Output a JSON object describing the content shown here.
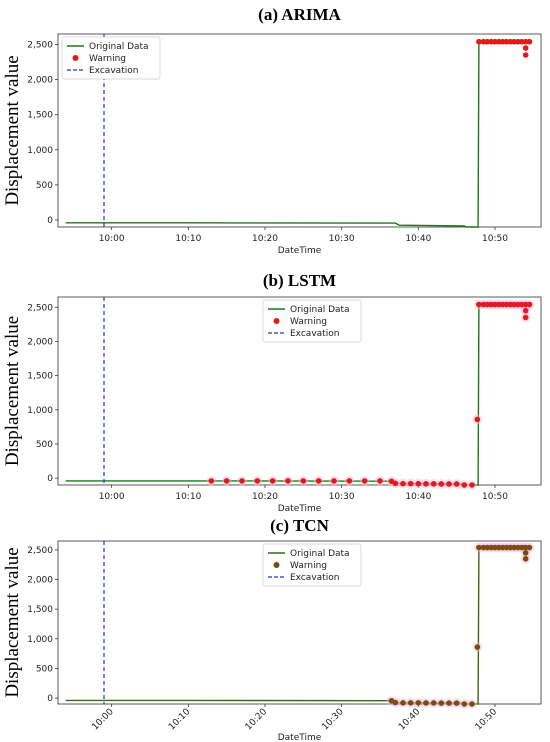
{
  "chart_data": [
    {
      "type": "line",
      "title": "(a) ARIMA",
      "xlabel": "DateTime",
      "ylabel": "Displacement  value",
      "xlim": [
        "09:53",
        "10:56"
      ],
      "ylim": [
        -100,
        2650
      ],
      "x_ticks": [
        "10:00",
        "10:10",
        "10:20",
        "10:30",
        "10:40",
        "10:50"
      ],
      "y_ticks": [
        "0",
        "500",
        "1,000",
        "1,500",
        "2,000",
        "2,500"
      ],
      "x_tick_rotation": 0,
      "legend_position": "top-left",
      "series": [
        {
          "name": "Original Data",
          "style": "line",
          "color": "#1a7a1a",
          "x": [
            "09:54",
            "10:10",
            "10:37",
            "10:37.5",
            "10:46",
            "10:46.2",
            "10:47.8",
            "10:47.9",
            "10:54.5"
          ],
          "y": [
            -40,
            -40,
            -45,
            -75,
            -85,
            -100,
            -100,
            2540,
            2540
          ]
        },
        {
          "name": "Warning",
          "style": "scatter",
          "color": "#e11a1a",
          "x": [
            "10:47.9",
            "10:48.5",
            "10:49",
            "10:49.5",
            "10:50",
            "10:50.5",
            "10:51",
            "10:51.5",
            "10:52",
            "10:52.5",
            "10:53",
            "10:53.5",
            "10:54",
            "10:54",
            "10:54",
            "10:54.5"
          ],
          "y": [
            2540,
            2540,
            2540,
            2540,
            2540,
            2540,
            2540,
            2540,
            2540,
            2540,
            2540,
            2540,
            2540,
            2450,
            2350,
            2540
          ]
        },
        {
          "name": "Excavation",
          "style": "vline",
          "color": "#2233cc",
          "x": [
            "09:59"
          ]
        }
      ]
    },
    {
      "type": "line",
      "title": "(b) LSTM",
      "xlabel": "DateTime",
      "ylabel": "Displacement  value",
      "xlim": [
        "09:53",
        "10:56"
      ],
      "ylim": [
        -100,
        2650
      ],
      "x_ticks": [
        "10:00",
        "10:10",
        "10:20",
        "10:30",
        "10:40",
        "10:50"
      ],
      "y_ticks": [
        "0",
        "500",
        "1,000",
        "1,500",
        "2,000",
        "2,500"
      ],
      "x_tick_rotation": 0,
      "legend_position": "top-center",
      "series": [
        {
          "name": "Original Data",
          "style": "line",
          "color": "#1a7a1a",
          "x": [
            "09:54",
            "10:13",
            "10:36.5",
            "10:37",
            "10:46",
            "10:46.2",
            "10:47.8",
            "10:47.9",
            "10:54.5"
          ],
          "y": [
            -40,
            -40,
            -45,
            -75,
            -85,
            -100,
            -100,
            2540,
            2540
          ]
        },
        {
          "name": "Warning",
          "style": "scatter",
          "color": "#e11a1a",
          "x": [
            "10:13",
            "10:15",
            "10:17",
            "10:19",
            "10:21",
            "10:23",
            "10:25",
            "10:27",
            "10:29",
            "10:31",
            "10:33",
            "10:35",
            "10:36.5",
            "10:37",
            "10:38",
            "10:39",
            "10:40",
            "10:41",
            "10:42",
            "10:43",
            "10:44",
            "10:45",
            "10:46",
            "10:47",
            "10:47.7",
            "10:47.9",
            "10:48.5",
            "10:49",
            "10:49.5",
            "10:50",
            "10:50.5",
            "10:51",
            "10:51.5",
            "10:52",
            "10:52.5",
            "10:53",
            "10:53.5",
            "10:54",
            "10:54",
            "10:54",
            "10:54.5"
          ],
          "y": [
            -40,
            -40,
            -40,
            -40,
            -40,
            -40,
            -40,
            -40,
            -40,
            -40,
            -40,
            -40,
            -45,
            -75,
            -80,
            -80,
            -80,
            -82,
            -82,
            -85,
            -85,
            -85,
            -100,
            -100,
            860,
            2540,
            2540,
            2540,
            2540,
            2540,
            2540,
            2540,
            2540,
            2540,
            2540,
            2540,
            2540,
            2540,
            2450,
            2350,
            2540
          ]
        },
        {
          "name": "Excavation",
          "style": "vline",
          "color": "#2233cc",
          "x": [
            "09:59"
          ]
        }
      ]
    },
    {
      "type": "line",
      "title": "(c) TCN",
      "xlabel": "DateTime",
      "ylabel": "Displacement  value",
      "xlim": [
        "09:53",
        "10:56"
      ],
      "ylim": [
        -100,
        2650
      ],
      "x_ticks": [
        "10:00",
        "10:10",
        "10:20",
        "10:30",
        "10:40",
        "10:50"
      ],
      "y_ticks": [
        "0",
        "500",
        "1,000",
        "1,500",
        "2,000",
        "2,500"
      ],
      "x_tick_rotation": 45,
      "legend_position": "top-center",
      "series": [
        {
          "name": "Original Data",
          "style": "line",
          "color": "#3a6b12",
          "x": [
            "09:54",
            "10:10",
            "10:36.5",
            "10:37",
            "10:46",
            "10:46.2",
            "10:47.8",
            "10:47.9",
            "10:54.5"
          ],
          "y": [
            -40,
            -40,
            -45,
            -75,
            -85,
            -100,
            -100,
            2540,
            2540
          ]
        },
        {
          "name": "Warning",
          "style": "scatter",
          "color": "#7a4d0e",
          "x": [
            "10:36.5",
            "10:37",
            "10:38",
            "10:39",
            "10:40",
            "10:41",
            "10:42",
            "10:43",
            "10:44",
            "10:45",
            "10:46",
            "10:47",
            "10:47.7",
            "10:47.9",
            "10:48.5",
            "10:49",
            "10:49.5",
            "10:50",
            "10:50.5",
            "10:51",
            "10:51.5",
            "10:52",
            "10:52.5",
            "10:53",
            "10:53.5",
            "10:54",
            "10:54",
            "10:54",
            "10:54.5"
          ],
          "y": [
            -45,
            -75,
            -80,
            -80,
            -80,
            -82,
            -82,
            -85,
            -85,
            -85,
            -100,
            -100,
            860,
            2540,
            2540,
            2540,
            2540,
            2540,
            2540,
            2540,
            2540,
            2540,
            2540,
            2540,
            2540,
            2540,
            2450,
            2350,
            2540
          ]
        },
        {
          "name": "Excavation",
          "style": "vline",
          "color": "#2233cc",
          "x": [
            "09:59"
          ]
        }
      ]
    }
  ]
}
